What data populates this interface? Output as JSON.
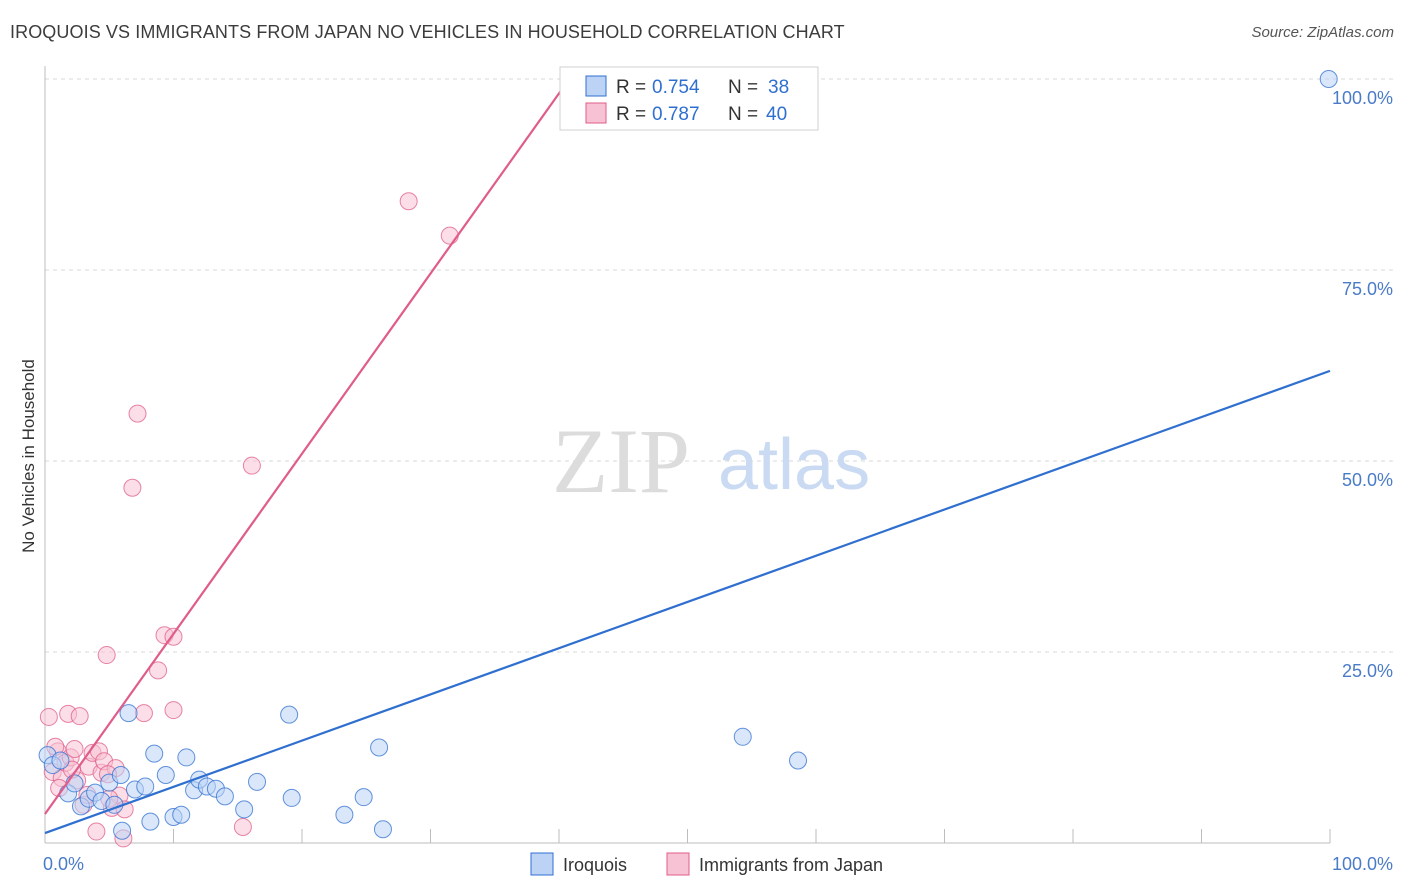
{
  "title": "IROQUOIS VS IMMIGRANTS FROM JAPAN NO VEHICLES IN HOUSEHOLD CORRELATION CHART",
  "source": "Source: ZipAtlas.com",
  "watermark": {
    "zip": "ZIP",
    "atlas": "atlas"
  },
  "colors": {
    "iroquois": "#2f6fd0",
    "japan": "#e05c8a",
    "iroquois_fill": "#bcd3f5",
    "japan_fill": "#f7c3d4",
    "grid": "#d8d8d8"
  },
  "legend": {
    "rows": [
      {
        "r_label": "R = ",
        "r_value": "0.754",
        "n_label": "N = ",
        "n_value": "38"
      },
      {
        "r_label": "R = ",
        "r_value": "0.787",
        "n_label": "N = ",
        "n_value": "40"
      }
    ]
  },
  "chart_data": {
    "type": "scatter",
    "title": "IROQUOIS VS IMMIGRANTS FROM JAPAN NO VEHICLES IN HOUSEHOLD CORRELATION CHART",
    "xlabel": "",
    "ylabel": "No Vehicles in Household",
    "xlim": [
      0,
      100
    ],
    "ylim": [
      0,
      100
    ],
    "x_tick_labels": [
      "0.0%",
      "100.0%"
    ],
    "y_ticks": [
      {
        "value": 25,
        "label": "25.0%"
      },
      {
        "value": 50,
        "label": "50.0%"
      },
      {
        "value": 75,
        "label": "75.0%"
      },
      {
        "value": 100,
        "label": "100.0%"
      }
    ],
    "series": [
      {
        "name": "Iroquois",
        "color": "#2f6fd0",
        "trend": {
          "x": [
            0,
            100
          ],
          "y": [
            1.3,
            61.8
          ]
        },
        "points": [
          [
            0.2,
            11.5
          ],
          [
            0.6,
            10.2
          ],
          [
            1.2,
            10.8
          ],
          [
            1.8,
            6.5
          ],
          [
            2.3,
            7.8
          ],
          [
            2.8,
            4.8
          ],
          [
            3.4,
            5.8
          ],
          [
            3.9,
            6.6
          ],
          [
            4.4,
            5.5
          ],
          [
            5.0,
            7.9
          ],
          [
            5.4,
            5.0
          ],
          [
            5.9,
            8.9
          ],
          [
            6.0,
            1.6
          ],
          [
            6.5,
            17.0
          ],
          [
            7.0,
            7.0
          ],
          [
            7.8,
            7.4
          ],
          [
            8.2,
            2.8
          ],
          [
            8.5,
            11.7
          ],
          [
            9.4,
            8.9
          ],
          [
            10.0,
            3.4
          ],
          [
            10.6,
            3.7
          ],
          [
            11.0,
            11.2
          ],
          [
            11.6,
            6.9
          ],
          [
            12.0,
            8.3
          ],
          [
            12.6,
            7.4
          ],
          [
            13.3,
            7.1
          ],
          [
            14.0,
            6.1
          ],
          [
            15.5,
            4.4
          ],
          [
            16.5,
            8.0
          ],
          [
            19.2,
            5.9
          ],
          [
            19.0,
            16.8
          ],
          [
            23.3,
            3.7
          ],
          [
            24.8,
            6.0
          ],
          [
            26.0,
            12.5
          ],
          [
            26.3,
            1.8
          ],
          [
            54.3,
            13.9
          ],
          [
            58.6,
            10.8
          ],
          [
            99.9,
            100.0
          ]
        ]
      },
      {
        "name": "Immigrants from Japan",
        "color": "#e05c8a",
        "trend": {
          "x": [
            0,
            40.8
          ],
          "y": [
            3.8,
            100
          ]
        },
        "points": [
          [
            0.3,
            16.5
          ],
          [
            0.6,
            9.3
          ],
          [
            1.0,
            12.0
          ],
          [
            1.3,
            8.5
          ],
          [
            1.6,
            10.5
          ],
          [
            1.8,
            16.9
          ],
          [
            2.0,
            11.2
          ],
          [
            2.3,
            12.3
          ],
          [
            2.7,
            16.6
          ],
          [
            3.0,
            5.0
          ],
          [
            3.4,
            10.0
          ],
          [
            3.7,
            11.8
          ],
          [
            4.0,
            1.5
          ],
          [
            4.2,
            12.0
          ],
          [
            4.4,
            9.2
          ],
          [
            4.6,
            10.7
          ],
          [
            4.8,
            24.6
          ],
          [
            5.2,
            4.6
          ],
          [
            5.5,
            9.8
          ],
          [
            5.8,
            6.2
          ],
          [
            6.1,
            0.6
          ],
          [
            6.2,
            4.4
          ],
          [
            6.8,
            46.5
          ],
          [
            7.2,
            56.2
          ],
          [
            7.7,
            17.0
          ],
          [
            8.8,
            22.6
          ],
          [
            9.3,
            27.2
          ],
          [
            10.0,
            17.4
          ],
          [
            10.0,
            27.0
          ],
          [
            15.4,
            2.1
          ],
          [
            16.1,
            49.4
          ],
          [
            28.3,
            84.0
          ],
          [
            31.5,
            79.5
          ],
          [
            2.5,
            8.2
          ],
          [
            1.1,
            7.2
          ],
          [
            3.3,
            6.3
          ],
          [
            0.8,
            12.6
          ],
          [
            5.0,
            5.8
          ],
          [
            2.1,
            9.6
          ],
          [
            4.9,
            9.0
          ]
        ]
      }
    ],
    "legend_position": "top-center"
  },
  "bottom_legend": [
    "Iroquois",
    "Immigrants from Japan"
  ]
}
